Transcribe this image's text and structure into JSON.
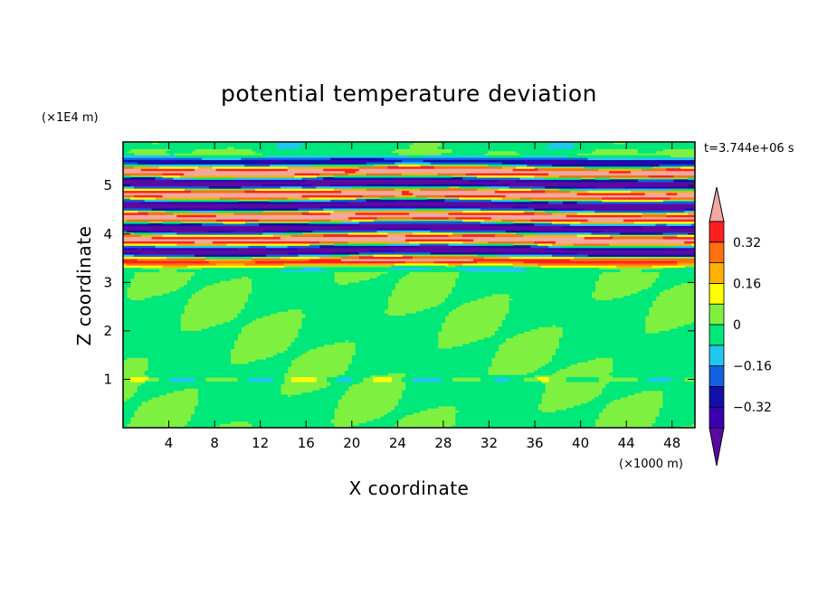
{
  "chart_data": {
    "type": "heatmap",
    "title": "potential temperature deviation",
    "time_label": "t=3.744e+06 s",
    "x_axis": {
      "label": "X coordinate",
      "unit": "(×1000 m)",
      "range": [
        0,
        50
      ],
      "ticks": [
        4,
        8,
        12,
        16,
        20,
        24,
        28,
        32,
        36,
        40,
        44,
        48
      ]
    },
    "y_axis": {
      "label": "Z coordinate",
      "unit": "(×1E4 m)",
      "range": [
        0,
        5.9
      ],
      "ticks": [
        1,
        2,
        3,
        4,
        5
      ]
    },
    "colorbar": {
      "levels": [
        -0.48,
        -0.4,
        -0.32,
        -0.24,
        -0.16,
        -0.08,
        0,
        0.08,
        0.16,
        0.24,
        0.32,
        0.4,
        0.48
      ],
      "labeled_ticks": [
        -0.32,
        -0.16,
        0,
        0.16,
        0.32
      ],
      "tick_labels": [
        "−0.32",
        "−0.16",
        "0",
        "0.16",
        "0.32"
      ],
      "colors": [
        "#5a0aa0",
        "#3a00b0",
        "#1010a8",
        "#1060e0",
        "#20c8f0",
        "#00e87a",
        "#7ef040",
        "#ffff00",
        "#ffb000",
        "#ff7010",
        "#ff2020",
        "#f0a8a0"
      ],
      "extend": "both"
    },
    "field_description": {
      "background_level_color": "#7ef040",
      "banded_layer_z": [
        3.3,
        5.5
      ],
      "near_surface_layer_z": 1.0
    }
  }
}
